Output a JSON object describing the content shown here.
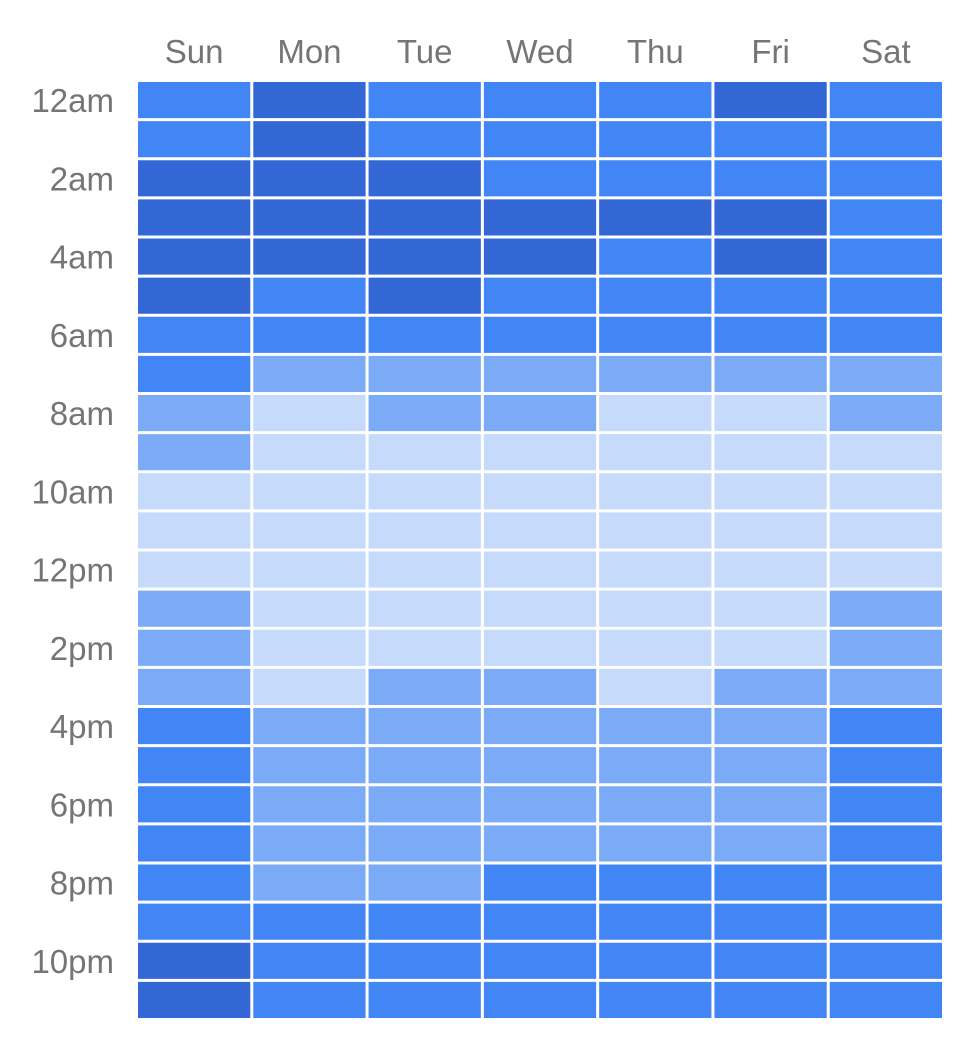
{
  "chart_data": {
    "type": "heatmap",
    "title": "",
    "xlabel": "",
    "ylabel": "",
    "x_categories": [
      "Sun",
      "Mon",
      "Tue",
      "Wed",
      "Thu",
      "Fri",
      "Sat"
    ],
    "y_categories": [
      "12am",
      "1am",
      "2am",
      "3am",
      "4am",
      "5am",
      "6am",
      "7am",
      "8am",
      "9am",
      "10am",
      "11am",
      "12pm",
      "1pm",
      "2pm",
      "3pm",
      "4pm",
      "5pm",
      "6pm",
      "7pm",
      "8pm",
      "9pm",
      "10pm",
      "11pm"
    ],
    "y_tick_labels_shown": [
      "12am",
      "2am",
      "4am",
      "6am",
      "8am",
      "10am",
      "12pm",
      "2pm",
      "4pm",
      "6pm",
      "8pm",
      "10pm"
    ],
    "levels": 4,
    "level_colors": [
      "#c6dafc",
      "#7baaf7",
      "#4285f4",
      "#3367d6"
    ],
    "values": [
      [
        2,
        3,
        2,
        2,
        2,
        3,
        2
      ],
      [
        2,
        3,
        2,
        2,
        2,
        2,
        2
      ],
      [
        3,
        3,
        3,
        2,
        2,
        2,
        2
      ],
      [
        3,
        3,
        3,
        3,
        3,
        3,
        2
      ],
      [
        3,
        3,
        3,
        3,
        2,
        3,
        2
      ],
      [
        3,
        2,
        3,
        2,
        2,
        2,
        2
      ],
      [
        2,
        2,
        2,
        2,
        2,
        2,
        2
      ],
      [
        2,
        1,
        1,
        1,
        1,
        1,
        1
      ],
      [
        1,
        0,
        1,
        1,
        0,
        0,
        1
      ],
      [
        1,
        0,
        0,
        0,
        0,
        0,
        0
      ],
      [
        0,
        0,
        0,
        0,
        0,
        0,
        0
      ],
      [
        0,
        0,
        0,
        0,
        0,
        0,
        0
      ],
      [
        0,
        0,
        0,
        0,
        0,
        0,
        0
      ],
      [
        1,
        0,
        0,
        0,
        0,
        0,
        1
      ],
      [
        1,
        0,
        0,
        0,
        0,
        0,
        1
      ],
      [
        1,
        0,
        1,
        1,
        0,
        1,
        1
      ],
      [
        2,
        1,
        1,
        1,
        1,
        1,
        2
      ],
      [
        2,
        1,
        1,
        1,
        1,
        1,
        2
      ],
      [
        2,
        1,
        1,
        1,
        1,
        1,
        2
      ],
      [
        2,
        1,
        1,
        1,
        1,
        1,
        2
      ],
      [
        2,
        1,
        1,
        2,
        2,
        2,
        2
      ],
      [
        2,
        2,
        2,
        2,
        2,
        2,
        2
      ],
      [
        3,
        2,
        2,
        2,
        2,
        2,
        2
      ],
      [
        3,
        2,
        2,
        2,
        2,
        2,
        2
      ]
    ],
    "grid": false,
    "legend": "none"
  }
}
